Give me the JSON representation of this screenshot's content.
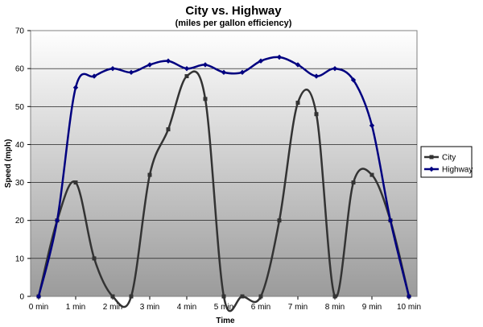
{
  "chart_data": {
    "type": "line",
    "title": "City vs. Highway",
    "subtitle": "(miles per gallon efficiency)",
    "xlabel": "Time",
    "ylabel": "Speed (mph)",
    "ylim": [
      0,
      70
    ],
    "yticks": [
      "0",
      "10",
      "20",
      "30",
      "40",
      "50",
      "60",
      "70"
    ],
    "x_tick_labels": [
      "0 min",
      "1 min",
      "2 min",
      "3 min",
      "4 min",
      "5 min",
      "6 min",
      "7 min",
      "8 min",
      "9 min",
      "10 min"
    ],
    "x": [
      0,
      0.5,
      1,
      1.5,
      2,
      2.5,
      3,
      3.5,
      4,
      4.5,
      5,
      5.5,
      6,
      6.5,
      7,
      7.5,
      8,
      8.5,
      9,
      9.5,
      10
    ],
    "series": [
      {
        "name": "City",
        "color": "#333333",
        "marker": "square",
        "values": [
          0,
          20,
          30,
          10,
          0,
          0,
          32,
          44,
          58,
          52,
          0,
          0,
          0,
          20,
          51,
          48,
          0,
          30,
          32,
          20,
          0
        ]
      },
      {
        "name": "Highway",
        "color": "#000080",
        "marker": "diamond",
        "values": [
          0,
          20,
          55,
          58,
          60,
          59,
          61,
          62,
          60,
          61,
          59,
          59,
          62,
          63,
          61,
          58,
          60,
          57,
          45,
          20,
          0
        ]
      }
    ],
    "grid": true,
    "legend_position": "right"
  }
}
